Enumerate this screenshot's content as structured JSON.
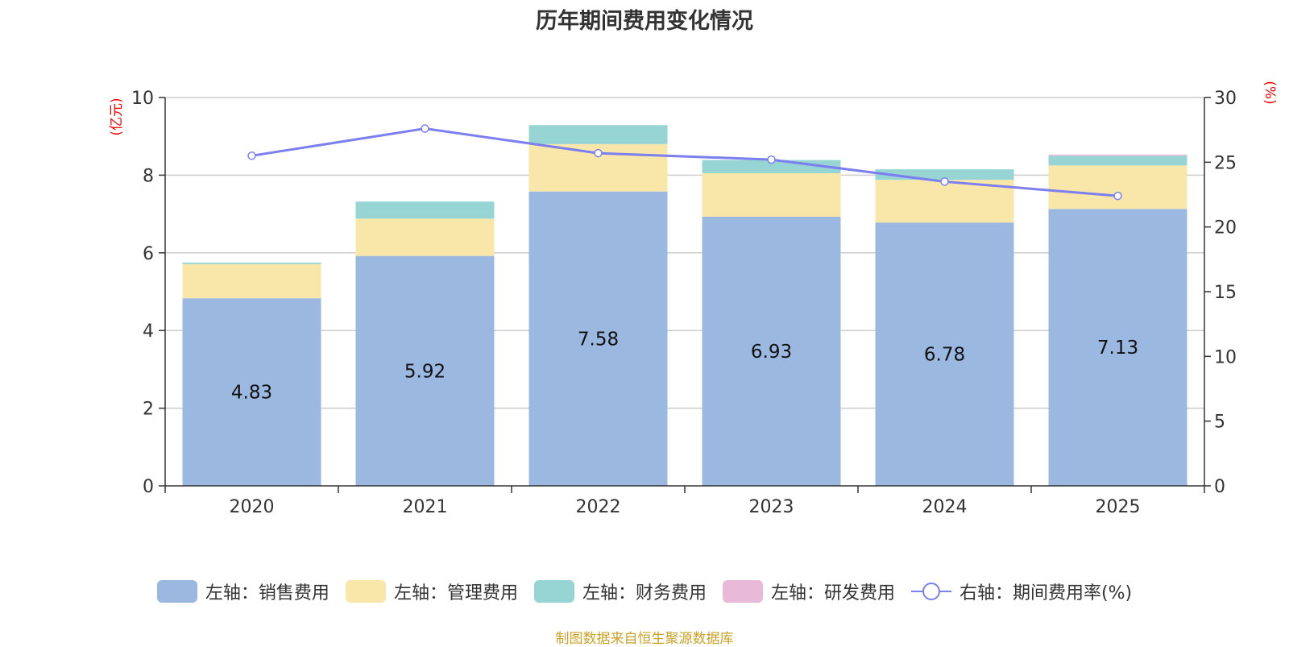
{
  "title": "历年期间费用变化情况",
  "source_note": "制图数据来自恒生聚源数据库",
  "colors": {
    "sales": "#9bb8e1",
    "admin": "#f8e7a9",
    "finance": "#97d5d5",
    "rnd": "#e8b9d8",
    "rate": "#7b7ff0",
    "axis_unit": "#ff0000",
    "grid": "#cccccc",
    "axis": "#333333"
  },
  "chart_data": {
    "type": "bar",
    "stacked": true,
    "categories": [
      "2020",
      "2021",
      "2022",
      "2023",
      "2024",
      "2025"
    ],
    "left_axis": {
      "label": "(亿元)",
      "min": 0,
      "max": 10,
      "ticks": [
        0,
        2,
        4,
        6,
        8,
        10
      ]
    },
    "right_axis": {
      "label": "(%)",
      "min": 0,
      "max": 30,
      "ticks": [
        0,
        5,
        10,
        15,
        20,
        25,
        30
      ]
    },
    "series": [
      {
        "key": "sales",
        "name": "左轴：销售费用",
        "axis": "left",
        "values": [
          4.83,
          5.92,
          7.58,
          6.93,
          6.78,
          7.13
        ],
        "show_labels": true
      },
      {
        "key": "admin",
        "name": "左轴：管理费用",
        "axis": "left",
        "values": [
          0.88,
          0.96,
          1.22,
          1.12,
          1.1,
          1.12
        ]
      },
      {
        "key": "finance",
        "name": "左轴：财务费用",
        "axis": "left",
        "values": [
          0.04,
          0.44,
          0.49,
          0.34,
          0.27,
          0.25
        ]
      },
      {
        "key": "rnd",
        "name": "左轴：研发费用",
        "axis": "left",
        "values": [
          0.0,
          0.0,
          0.0,
          0.0,
          0.0,
          0.03
        ]
      }
    ],
    "line_series": {
      "key": "rate",
      "name": "右轴：期间费用率(%)",
      "axis": "right",
      "values": [
        25.5,
        27.6,
        25.7,
        25.2,
        23.5,
        22.4
      ]
    }
  }
}
